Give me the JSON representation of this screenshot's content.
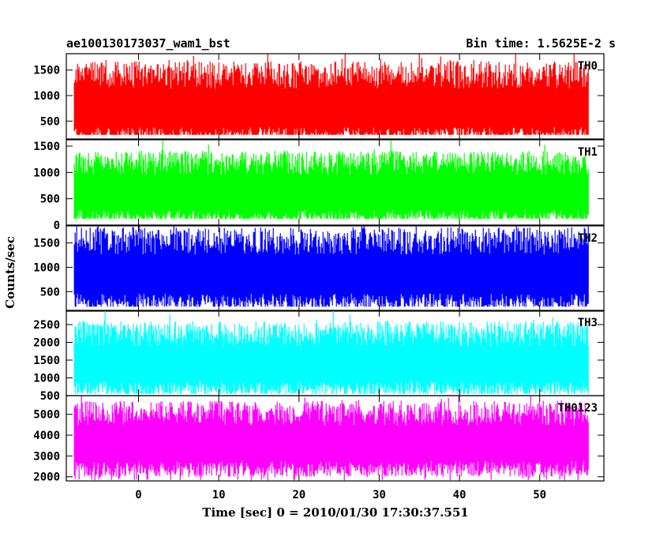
{
  "header": {
    "left_title": "ae100130173037_wam1_bst",
    "right_title": "Bin time: 1.5625E-2 s"
  },
  "chart_data": {
    "type": "line",
    "title": "ae100130173037_wam1_bst",
    "subtitle": "Bin time: 1.5625E-2 s",
    "xlabel": "Time [sec] 0 = 2010/01/30 17:30:37.551",
    "ylabel": "Counts/sec",
    "xlim": [
      -9,
      58
    ],
    "x_ticks": [
      0,
      10,
      20,
      30,
      40,
      50
    ],
    "x_start": -8,
    "x_end": 56,
    "bin_time": 0.015625,
    "grid": false,
    "panels": [
      {
        "name": "TH0",
        "color": "#ff0000",
        "ylim": [
          150,
          1820
        ],
        "y_ticks": [
          500,
          1000,
          1500
        ],
        "center": 800,
        "spread": 380,
        "low_floor": 230,
        "high_cap": 1820
      },
      {
        "name": "TH1",
        "color": "#00ff00",
        "ylim": [
          0,
          1620
        ],
        "y_ticks": [
          0,
          500,
          1000,
          1500
        ],
        "center": 650,
        "spread": 330,
        "low_floor": 120,
        "high_cap": 1600
      },
      {
        "name": "TH2",
        "color": "#0000ff",
        "ylim": [
          100,
          1850
        ],
        "y_ticks": [
          500,
          1000,
          1500
        ],
        "center": 900,
        "spread": 400,
        "low_floor": 190,
        "high_cap": 1850
      },
      {
        "name": "TH3",
        "color": "#00ffff",
        "ylim": [
          500,
          2900
        ],
        "y_ticks": [
          500,
          1000,
          1500,
          2000,
          2500
        ],
        "center": 1450,
        "spread": 500,
        "low_floor": 550,
        "high_cap": 2880
      },
      {
        "name": "TH0123",
        "color": "#ff00ff",
        "ylim": [
          1800,
          5900
        ],
        "y_ticks": [
          2000,
          3000,
          4000,
          5000
        ],
        "center": 3700,
        "spread": 850,
        "low_floor": 1820,
        "high_cap": 5880
      }
    ]
  }
}
